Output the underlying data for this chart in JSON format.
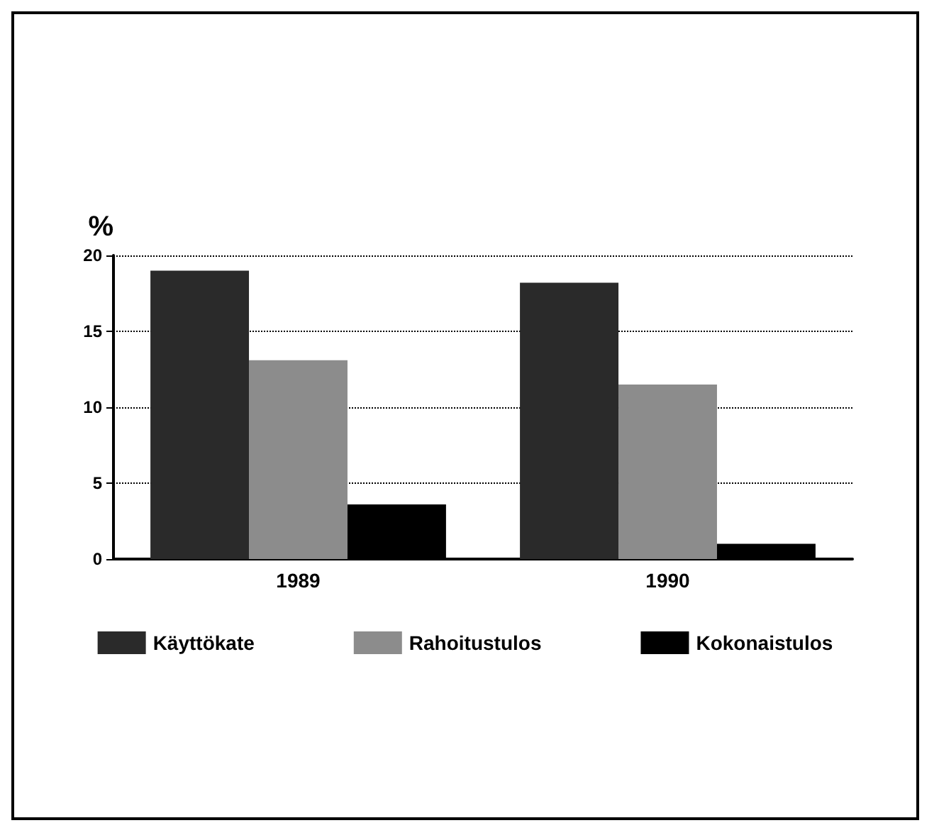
{
  "chart_data": {
    "type": "bar",
    "ylabel": "%",
    "categories": [
      "1989",
      "1990"
    ],
    "series": [
      {
        "name": "Käyttökate",
        "color": "#2a2a2a",
        "values": [
          19.0,
          18.2
        ]
      },
      {
        "name": "Rahoitustulos",
        "color": "#8c8c8c",
        "values": [
          13.1,
          11.5
        ]
      },
      {
        "name": "Kokonaistulos",
        "color": "#000000",
        "values": [
          3.6,
          1.0
        ]
      }
    ],
    "ylim": [
      0,
      20
    ],
    "yticks": [
      0,
      5,
      10,
      15,
      20
    ],
    "grid": "y",
    "legend": "bottom"
  }
}
